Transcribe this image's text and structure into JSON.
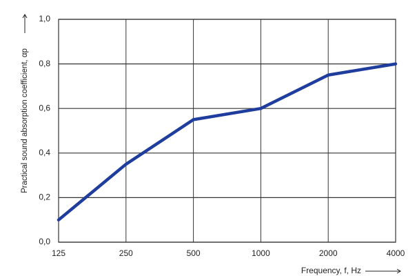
{
  "chart_data": {
    "type": "line",
    "y_label": "Practical sound absorption coefficient, αp",
    "x_label": "Frequency, f, Hz",
    "categories": [
      "125",
      "250",
      "500",
      "1000",
      "2000",
      "4000"
    ],
    "series": [
      {
        "name": "Practical sound absorption coefficient",
        "color": "#1e3d9c",
        "values": [
          0.1,
          0.35,
          0.55,
          0.6,
          0.75,
          0.8
        ]
      }
    ],
    "ylim": [
      0,
      1
    ],
    "yticks": [
      {
        "value": 0,
        "label": "0,0"
      },
      {
        "value": 0.2,
        "label": "0,2"
      },
      {
        "value": 0.4,
        "label": "0,4"
      },
      {
        "value": 0.6,
        "label": "0,6"
      },
      {
        "value": 0.8,
        "label": "0,8"
      },
      {
        "value": 1,
        "label": "1,0"
      }
    ],
    "grid": true
  }
}
